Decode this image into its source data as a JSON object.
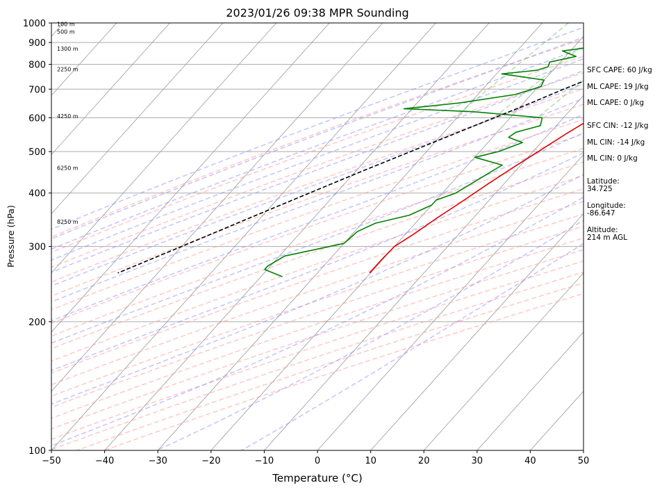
{
  "chart_data": {
    "type": "skew-t",
    "title": "2023/01/26 09:38 MPR Sounding",
    "xlabel": "Temperature (°C)",
    "ylabel": "Pressure (hPa)",
    "xlim": [
      -50,
      50
    ],
    "ylim_hpa": [
      1000,
      100
    ],
    "pressure_scale": "log",
    "grid": true,
    "x_ticks": [
      -50,
      -40,
      -30,
      -20,
      -10,
      0,
      10,
      20,
      30,
      40,
      50
    ],
    "x_tick_labels": [
      "−50",
      "−40",
      "−30",
      "−20",
      "−10",
      "0",
      "10",
      "20",
      "30",
      "40",
      "50"
    ],
    "y_ticks": [
      100,
      200,
      300,
      400,
      500,
      600,
      700,
      800,
      900,
      1000
    ],
    "y_tick_labels": [
      "100",
      "200",
      "300",
      "400",
      "500",
      "600",
      "700",
      "800",
      "900",
      "1000"
    ],
    "height_labels": [
      {
        "text": "100 m",
        "p": 995
      },
      {
        "text": "500 m",
        "p": 955
      },
      {
        "text": "1300 m",
        "p": 870
      },
      {
        "text": "2250 m",
        "p": 780
      },
      {
        "text": "4250 m",
        "p": 605
      },
      {
        "text": "6250 m",
        "p": 458
      },
      {
        "text": "8250 m",
        "p": 343
      }
    ],
    "series": [
      {
        "kind": "temperature",
        "color": "#e00000",
        "points": [
          [
            1000,
            4.5
          ],
          [
            990,
            3.5
          ],
          [
            970,
            1.0
          ],
          [
            950,
            -1.0
          ],
          [
            930,
            -2.5
          ],
          [
            910,
            -3.3
          ],
          [
            880,
            -3.5
          ],
          [
            850,
            -3.4
          ],
          [
            820,
            -2.8
          ],
          [
            790,
            -1.9
          ],
          [
            760,
            -1.8
          ],
          [
            730,
            -1.7
          ],
          [
            700,
            -1.6
          ],
          [
            680,
            -1.3
          ],
          [
            650,
            -2.5
          ],
          [
            600,
            -4.5
          ],
          [
            550,
            -6.8
          ],
          [
            500,
            -9.0
          ],
          [
            460,
            -11.0
          ],
          [
            420,
            -13.0
          ],
          [
            380,
            -15.0
          ],
          [
            350,
            -16.8
          ],
          [
            320,
            -18.5
          ],
          [
            300,
            -20.0
          ],
          [
            280,
            -20.2
          ],
          [
            260,
            -20.2
          ]
        ]
      },
      {
        "kind": "dewpoint",
        "color": "#008000",
        "points": [
          [
            1000,
            0.5
          ],
          [
            995,
            -3.0
          ],
          [
            980,
            -11.0
          ],
          [
            960,
            -18.0
          ],
          [
            930,
            -18.5
          ],
          [
            915,
            -14.5
          ],
          [
            890,
            -15.5
          ],
          [
            880,
            -16.0
          ],
          [
            860,
            -21.5
          ],
          [
            835,
            -18.0
          ],
          [
            810,
            -22.0
          ],
          [
            790,
            -21.5
          ],
          [
            775,
            -23.0
          ],
          [
            760,
            -29.0
          ],
          [
            735,
            -20.0
          ],
          [
            710,
            -19.5
          ],
          [
            680,
            -23.0
          ],
          [
            650,
            -32.0
          ],
          [
            630,
            -41.5
          ],
          [
            620,
            -28.0
          ],
          [
            600,
            -14.0
          ],
          [
            575,
            -13.0
          ],
          [
            555,
            -16.5
          ],
          [
            540,
            -17.0
          ],
          [
            525,
            -13.5
          ],
          [
            500,
            -16.5
          ],
          [
            485,
            -20.0
          ],
          [
            465,
            -13.5
          ],
          [
            440,
            -15.0
          ],
          [
            400,
            -17.5
          ],
          [
            385,
            -20.0
          ],
          [
            375,
            -20.0
          ],
          [
            355,
            -22.5
          ],
          [
            340,
            -27.5
          ],
          [
            325,
            -29.5
          ],
          [
            305,
            -30.0
          ],
          [
            285,
            -39.0
          ],
          [
            270,
            -40.5
          ],
          [
            265,
            -40.5
          ],
          [
            255,
            -36.0
          ]
        ]
      },
      {
        "kind": "parcel",
        "color": "#000000",
        "style": "dashed",
        "points": [
          [
            1000,
            4.5
          ],
          [
            970,
            2.0
          ],
          [
            940,
            -0.5
          ],
          [
            900,
            -2.4
          ],
          [
            850,
            -5.0
          ],
          [
            800,
            -7.8
          ],
          [
            750,
            -11.0
          ],
          [
            700,
            -14.8
          ],
          [
            650,
            -18.6
          ],
          [
            600,
            -23.0
          ],
          [
            550,
            -27.8
          ],
          [
            500,
            -33.0
          ],
          [
            450,
            -38.8
          ],
          [
            400,
            -45.0
          ],
          [
            350,
            -52.0
          ],
          [
            300,
            -60.0
          ],
          [
            260,
            -67.5
          ]
        ]
      }
    ],
    "reference_lines": {
      "dry_adiabats_theta_K": [
        260,
        270,
        280,
        290,
        300,
        310,
        320,
        330,
        340,
        350,
        360,
        370,
        380,
        390,
        400,
        410,
        420,
        430,
        440,
        450
      ],
      "dry_adiabat_color": "#ff9999",
      "moist_adiabats_start_C": [
        -20,
        -15,
        -10,
        -5,
        0,
        5,
        10,
        15,
        20,
        25,
        30,
        35,
        40,
        45
      ],
      "moist_adiabat_color": "#8888ff",
      "mixing_ratios_gkg": [
        0.5,
        1,
        2,
        4,
        7,
        10,
        16,
        24,
        32
      ],
      "mixing_ratio_color": "#66bb66",
      "isotherm_color": "#999999"
    }
  },
  "side_panel": {
    "sfc_cape": "SFC CAPE: 60 J/kg",
    "ml_cape_1": "ML CAPE: 19 J/kg",
    "ml_cape_2": "ML CAPE: 0 J/kg",
    "sfc_cin": "SFC CIN: -12 J/kg",
    "ml_cin_1": "ML CIN: -14 J/kg",
    "ml_cin_2": "ML CIN: 0 J/kg",
    "latitude_label": "Latitude:",
    "latitude_value": "34.725",
    "longitude_label": "Longitude:",
    "longitude_value": "-86.647",
    "altitude_label": "Altitude:",
    "altitude_value": "214 m AGL"
  }
}
